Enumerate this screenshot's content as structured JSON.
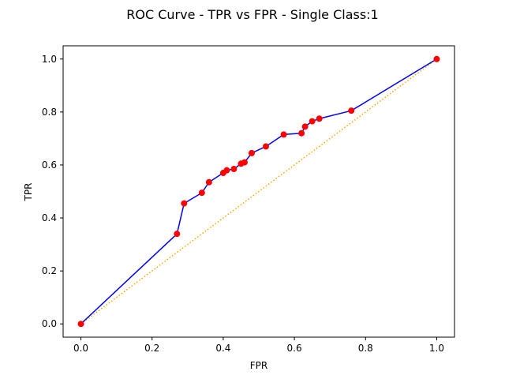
{
  "chart_data": {
    "type": "line",
    "title": "ROC Curve - TPR vs FPR - Single Class:1",
    "xlabel": "FPR",
    "ylabel": "TPR",
    "xlim": [
      -0.05,
      1.05
    ],
    "ylim": [
      -0.05,
      1.05
    ],
    "xticks": [
      "0.0",
      "0.2",
      "0.4",
      "0.6",
      "0.8",
      "1.0"
    ],
    "yticks": [
      "0.0",
      "0.2",
      "0.4",
      "0.6",
      "0.8",
      "1.0"
    ],
    "grid": false,
    "series": [
      {
        "style": "solid line with markers",
        "line_color": "#0000ff",
        "marker_color": "#ff0000",
        "x": [
          0.0,
          0.27,
          0.29,
          0.34,
          0.36,
          0.4,
          0.41,
          0.43,
          0.45,
          0.46,
          0.48,
          0.52,
          0.57,
          0.62,
          0.63,
          0.65,
          0.67,
          0.76,
          1.0
        ],
        "y": [
          0.0,
          0.34,
          0.455,
          0.495,
          0.535,
          0.57,
          0.58,
          0.585,
          0.605,
          0.61,
          0.645,
          0.67,
          0.715,
          0.72,
          0.745,
          0.765,
          0.775,
          0.805,
          1.0
        ]
      },
      {
        "style": "dotted diagonal",
        "line_color": "#ffa500",
        "x": [
          0.0,
          1.0
        ],
        "y": [
          0.0,
          1.0
        ]
      }
    ]
  }
}
